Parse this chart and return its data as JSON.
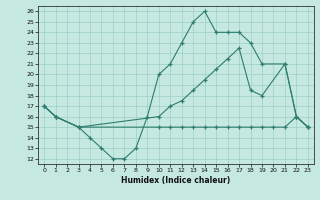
{
  "top_x": [
    0,
    1,
    3,
    4,
    5,
    6,
    7,
    8,
    9,
    10,
    11,
    12,
    13,
    14,
    15,
    16,
    17,
    18,
    19,
    21,
    22,
    23
  ],
  "top_y": [
    17,
    16,
    15,
    14,
    13,
    12,
    12,
    13,
    16,
    20,
    21,
    23,
    25,
    26,
    24,
    24,
    24,
    23,
    21,
    21,
    16,
    15
  ],
  "mid_x": [
    0,
    1,
    3,
    10,
    11,
    12,
    13,
    14,
    15,
    16,
    17,
    18,
    19,
    21,
    22,
    23
  ],
  "mid_y": [
    17,
    16,
    15,
    16,
    17,
    17.5,
    18.5,
    19.5,
    20.5,
    21.5,
    22.5,
    18.5,
    18,
    21,
    16,
    15
  ],
  "bot_x": [
    0,
    1,
    3,
    10,
    11,
    12,
    13,
    14,
    15,
    16,
    17,
    18,
    19,
    20,
    21,
    22,
    23
  ],
  "bot_y": [
    17,
    16,
    15,
    15,
    15,
    15,
    15,
    15,
    15,
    15,
    15,
    15,
    15,
    15,
    15,
    16,
    15
  ],
  "color": "#2E7D6E",
  "bg_color": "#C5E8E0",
  "grid_color": "#9ECFC5",
  "xlabel": "Humidex (Indice chaleur)",
  "ylim": [
    11.5,
    26.5
  ],
  "xlim": [
    -0.5,
    23.5
  ],
  "yticks": [
    12,
    13,
    14,
    15,
    16,
    17,
    18,
    19,
    20,
    21,
    22,
    23,
    24,
    25,
    26
  ],
  "xticks": [
    0,
    1,
    2,
    3,
    4,
    5,
    6,
    7,
    8,
    9,
    10,
    11,
    12,
    13,
    14,
    15,
    16,
    17,
    18,
    19,
    20,
    21,
    22,
    23
  ]
}
